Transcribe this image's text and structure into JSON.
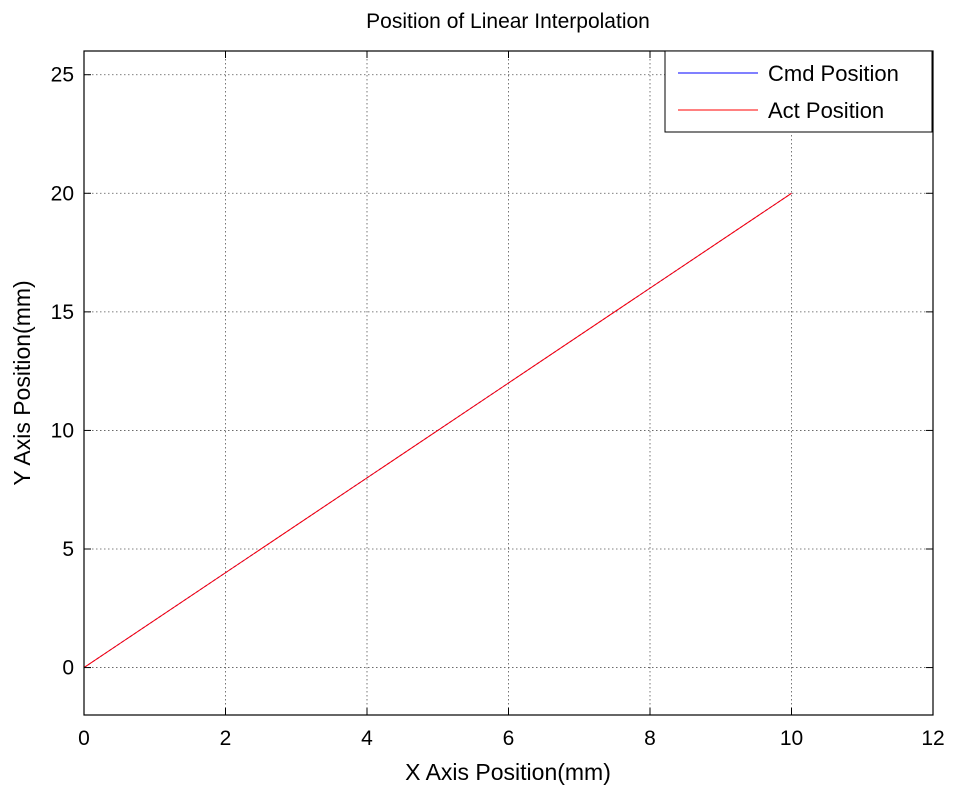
{
  "chart_data": {
    "type": "line",
    "title": "Position of Linear Interpolation",
    "xlabel": "X Axis Position(mm)",
    "ylabel": "Y Axis Position(mm)",
    "xlim": [
      0,
      12
    ],
    "ylim": [
      -2,
      26
    ],
    "xticks": [
      0,
      2,
      4,
      6,
      8,
      10,
      12
    ],
    "yticks": [
      0,
      5,
      10,
      15,
      20,
      25
    ],
    "grid": true,
    "legend_position": "top-right",
    "series": [
      {
        "name": "Cmd Position",
        "color": "#0000ff",
        "x": [
          0,
          10
        ],
        "y": [
          0,
          20
        ]
      },
      {
        "name": "Act Position",
        "color": "#ff0000",
        "x": [
          0,
          10
        ],
        "y": [
          0,
          20
        ]
      }
    ]
  }
}
